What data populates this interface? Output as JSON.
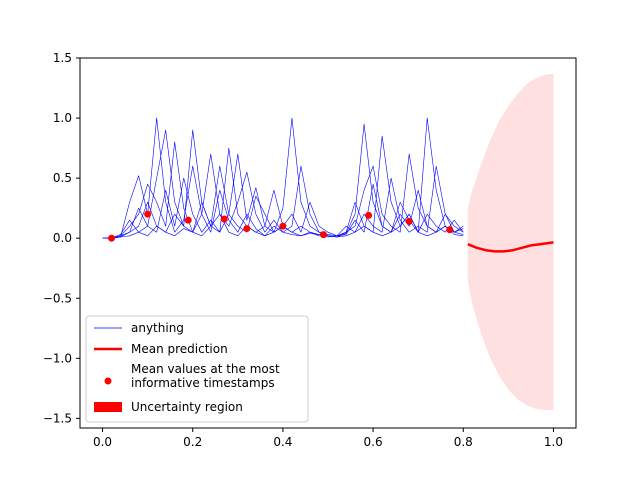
{
  "chart_data": {
    "type": "line",
    "xlim": [
      -0.05,
      1.05
    ],
    "ylim": [
      -1.58,
      1.5
    ],
    "x_ticks": [
      0.0,
      0.2,
      0.4,
      0.6,
      0.8,
      1.0
    ],
    "y_ticks": [
      -1.5,
      -1.0,
      -0.5,
      0.0,
      0.5,
      1.0,
      1.5
    ],
    "x_tick_labels": [
      "0.0",
      "0.2",
      "0.4",
      "0.6",
      "0.8",
      "1.0"
    ],
    "y_tick_labels": [
      "−1.5",
      "−1.0",
      "−0.5",
      "0.0",
      "0.5",
      "1.0",
      "1.5"
    ],
    "grid": false,
    "legend_position": "lower-left",
    "legend": [
      {
        "label": "anything",
        "kind": "thin-line",
        "color": "#0000ff"
      },
      {
        "label": "Mean prediction",
        "kind": "thick-line",
        "color": "#ff0000"
      },
      {
        "label": "Mean values at the most\ninformative timestamps",
        "kind": "marker",
        "color": "#ff0000"
      },
      {
        "label": "Uncertainty region",
        "kind": "patch",
        "color": "#ff0000"
      }
    ],
    "series": [
      {
        "name": "anything",
        "color": "#0000ff",
        "style": "thin",
        "x": [
          0.0,
          0.02,
          0.04,
          0.06,
          0.08,
          0.1,
          0.12,
          0.14,
          0.16,
          0.18,
          0.2,
          0.22,
          0.24,
          0.26,
          0.28,
          0.3,
          0.32,
          0.34,
          0.36,
          0.38,
          0.4,
          0.42,
          0.44,
          0.46,
          0.48,
          0.5,
          0.52,
          0.54,
          0.56,
          0.58,
          0.6,
          0.62,
          0.64,
          0.66,
          0.68,
          0.7,
          0.72,
          0.74,
          0.76,
          0.78,
          0.8
        ],
        "y": [
          0.0,
          0.0,
          0.01,
          0.3,
          0.52,
          0.2,
          1.0,
          0.3,
          0.05,
          0.15,
          0.6,
          0.2,
          0.05,
          0.4,
          0.15,
          0.05,
          0.2,
          0.08,
          0.02,
          0.1,
          0.05,
          0.03,
          0.02,
          0.05,
          0.03,
          0.02,
          0.01,
          0.04,
          0.2,
          0.95,
          0.3,
          0.1,
          0.05,
          0.3,
          0.15,
          0.05,
          0.2,
          0.1,
          0.05,
          0.15,
          0.05
        ]
      },
      {
        "x": [
          0.0,
          0.02,
          0.04,
          0.06,
          0.08,
          0.1,
          0.12,
          0.14,
          0.16,
          0.18,
          0.2,
          0.22,
          0.24,
          0.26,
          0.28,
          0.3,
          0.32,
          0.34,
          0.36,
          0.38,
          0.4,
          0.42,
          0.44,
          0.46,
          0.48,
          0.5,
          0.52,
          0.54,
          0.56,
          0.58,
          0.6,
          0.62,
          0.64,
          0.66,
          0.68,
          0.7,
          0.72,
          0.74,
          0.76,
          0.78,
          0.8
        ],
        "y": [
          0.0,
          0.0,
          0.02,
          0.1,
          0.2,
          0.45,
          0.3,
          0.1,
          0.8,
          0.25,
          0.05,
          0.3,
          0.1,
          0.6,
          0.2,
          0.1,
          0.05,
          0.35,
          0.2,
          0.05,
          0.25,
          1.0,
          0.3,
          0.1,
          0.05,
          0.02,
          0.01,
          0.05,
          0.1,
          0.4,
          0.6,
          0.2,
          0.1,
          0.05,
          0.7,
          0.25,
          0.1,
          0.05,
          0.2,
          0.1,
          0.05
        ],
        "color": "#0000ff",
        "style": "thin"
      },
      {
        "x": [
          0.0,
          0.02,
          0.04,
          0.06,
          0.08,
          0.1,
          0.12,
          0.14,
          0.16,
          0.18,
          0.2,
          0.22,
          0.24,
          0.26,
          0.28,
          0.3,
          0.32,
          0.34,
          0.36,
          0.38,
          0.4,
          0.42,
          0.44,
          0.46,
          0.48,
          0.5,
          0.52,
          0.54,
          0.56,
          0.58,
          0.6,
          0.62,
          0.64,
          0.66,
          0.68,
          0.7,
          0.72,
          0.74,
          0.76,
          0.78,
          0.8
        ],
        "y": [
          0.0,
          0.0,
          0.01,
          0.05,
          0.1,
          0.3,
          0.1,
          0.05,
          0.2,
          0.1,
          0.9,
          0.3,
          0.1,
          0.05,
          0.75,
          0.2,
          0.1,
          0.05,
          0.1,
          0.4,
          0.1,
          0.05,
          0.1,
          0.05,
          0.02,
          0.01,
          0.02,
          0.05,
          0.3,
          0.1,
          0.05,
          0.85,
          0.3,
          0.1,
          0.2,
          0.05,
          1.0,
          0.4,
          0.1,
          0.05,
          0.08
        ],
        "color": "#0000ff",
        "style": "thin"
      },
      {
        "x": [
          0.0,
          0.02,
          0.04,
          0.06,
          0.08,
          0.1,
          0.12,
          0.14,
          0.16,
          0.18,
          0.2,
          0.22,
          0.24,
          0.26,
          0.28,
          0.3,
          0.32,
          0.34,
          0.36,
          0.38,
          0.4,
          0.42,
          0.44,
          0.46,
          0.48,
          0.5,
          0.52,
          0.54,
          0.56,
          0.58,
          0.6,
          0.62,
          0.64,
          0.66,
          0.68,
          0.7,
          0.72,
          0.74,
          0.76,
          0.78,
          0.8
        ],
        "y": [
          0.0,
          0.0,
          0.03,
          0.15,
          0.05,
          0.1,
          0.5,
          0.9,
          0.3,
          0.1,
          0.05,
          0.2,
          0.7,
          0.2,
          0.1,
          0.3,
          0.55,
          0.2,
          0.05,
          0.15,
          0.05,
          0.1,
          0.6,
          0.2,
          0.05,
          0.03,
          0.02,
          0.1,
          0.05,
          0.2,
          0.1,
          0.05,
          0.5,
          0.15,
          0.05,
          0.1,
          0.05,
          0.6,
          0.2,
          0.05,
          0.03
        ],
        "color": "#0000ff",
        "style": "thin"
      },
      {
        "x": [
          0.0,
          0.02,
          0.04,
          0.06,
          0.08,
          0.1,
          0.12,
          0.14,
          0.16,
          0.18,
          0.2,
          0.22,
          0.24,
          0.26,
          0.28,
          0.3,
          0.32,
          0.34,
          0.36,
          0.38,
          0.4,
          0.42,
          0.44,
          0.46,
          0.48,
          0.5,
          0.52,
          0.54,
          0.56,
          0.58,
          0.6,
          0.62,
          0.64,
          0.66,
          0.68,
          0.7,
          0.72,
          0.74,
          0.76,
          0.78,
          0.8
        ],
        "y": [
          0.0,
          0.0,
          0.02,
          0.05,
          0.25,
          0.1,
          0.05,
          0.4,
          0.1,
          0.5,
          0.2,
          0.05,
          0.15,
          0.05,
          0.2,
          0.7,
          0.15,
          0.42,
          0.1,
          0.05,
          0.1,
          0.2,
          0.05,
          0.3,
          0.1,
          0.05,
          0.02,
          0.03,
          0.15,
          0.05,
          0.45,
          0.1,
          0.05,
          0.2,
          0.1,
          0.4,
          0.1,
          0.05,
          0.1,
          0.05,
          0.1
        ],
        "color": "#0000ff",
        "style": "thin"
      },
      {
        "x": [
          0.0,
          0.02,
          0.04,
          0.06,
          0.08,
          0.1,
          0.12,
          0.14,
          0.16,
          0.18,
          0.2,
          0.22,
          0.24,
          0.26,
          0.28,
          0.3,
          0.32,
          0.34,
          0.36,
          0.38,
          0.4,
          0.42,
          0.44,
          0.46,
          0.48,
          0.5,
          0.52,
          0.54,
          0.56,
          0.58,
          0.6,
          0.62,
          0.64,
          0.66,
          0.68,
          0.7,
          0.72,
          0.74,
          0.76,
          0.78,
          0.8
        ],
        "y": [
          0.0,
          0.0,
          0.01,
          0.02,
          0.05,
          0.02,
          0.1,
          0.05,
          0.02,
          0.08,
          0.05,
          0.02,
          0.1,
          0.2,
          0.05,
          0.02,
          0.1,
          0.05,
          0.02,
          0.05,
          0.1,
          0.05,
          0.02,
          0.04,
          0.03,
          0.02,
          0.01,
          0.02,
          0.05,
          0.1,
          0.05,
          0.02,
          0.05,
          0.1,
          0.2,
          0.05,
          0.02,
          0.05,
          0.1,
          0.03,
          0.02
        ],
        "color": "#0000ff",
        "style": "thin"
      },
      {
        "name": "Mean prediction",
        "color": "#ff0000",
        "style": "thick",
        "x": [
          0.81,
          0.83,
          0.85,
          0.87,
          0.89,
          0.91,
          0.93,
          0.95,
          0.97,
          0.99,
          1.0
        ],
        "y": [
          -0.05,
          -0.08,
          -0.1,
          -0.11,
          -0.11,
          -0.1,
          -0.08,
          -0.06,
          -0.05,
          -0.04,
          -0.035
        ]
      },
      {
        "name": "Uncertainty region",
        "color": "#ff0000",
        "style": "band",
        "x": [
          0.81,
          0.82,
          0.84,
          0.86,
          0.88,
          0.9,
          0.92,
          0.94,
          0.96,
          0.98,
          1.0
        ],
        "upper": [
          0.25,
          0.4,
          0.62,
          0.82,
          0.98,
          1.1,
          1.2,
          1.28,
          1.33,
          1.36,
          1.37
        ],
        "lower": [
          -0.35,
          -0.55,
          -0.8,
          -1.0,
          -1.15,
          -1.26,
          -1.34,
          -1.39,
          -1.42,
          -1.43,
          -1.43
        ]
      },
      {
        "name": "Mean values at the most informative timestamps",
        "color": "#ff0000",
        "style": "markers",
        "x": [
          0.02,
          0.1,
          0.19,
          0.27,
          0.32,
          0.4,
          0.49,
          0.59,
          0.68,
          0.77
        ],
        "y": [
          0.0,
          0.2,
          0.15,
          0.16,
          0.08,
          0.1,
          0.03,
          0.19,
          0.14,
          0.07
        ]
      }
    ]
  }
}
